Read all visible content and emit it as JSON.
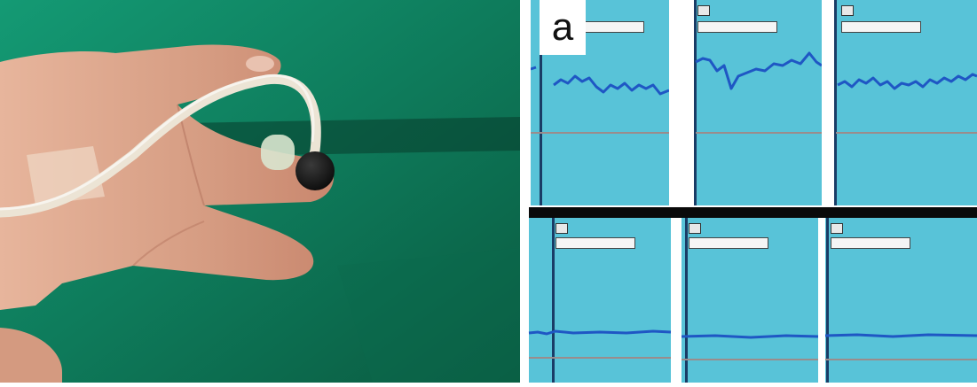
{
  "figure": {
    "panel_label": "a"
  },
  "colors": {
    "drape_green": "#0f7a58",
    "monitor_background": "#58c3d8",
    "trace_blue": "#1f57c4",
    "baseline_gray": "#9a8c8c",
    "divider_black": "#0a0a0a",
    "skin": "#d9a48a",
    "tube": "#ece4d5",
    "probe_dark": "#141414"
  },
  "monitor": {
    "top_row_traces": 3,
    "bottom_row_traces": 3,
    "top_row_signal": "pulsatile",
    "bottom_row_signal": "flat"
  }
}
